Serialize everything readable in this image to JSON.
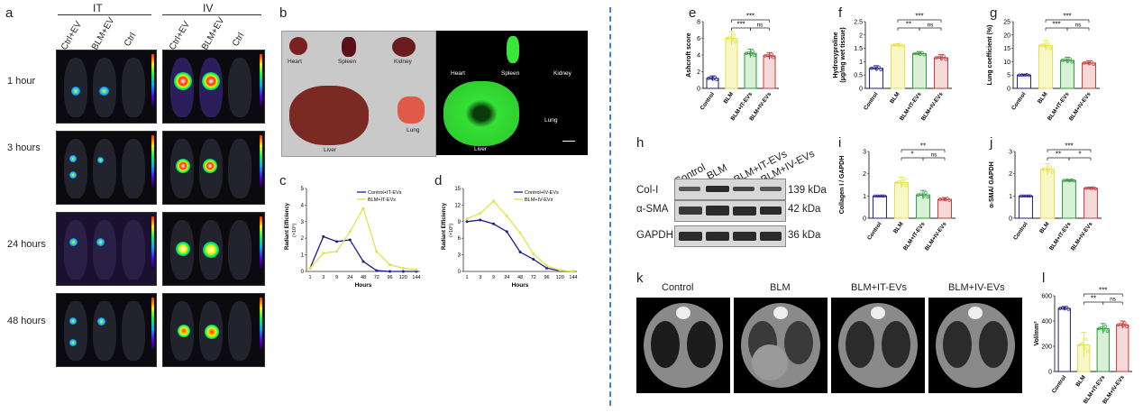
{
  "panels": {
    "a": {
      "letter": "a",
      "groups": [
        "IT",
        "IV"
      ],
      "columns": [
        "Ctrl+EV",
        "BLM+EV",
        "Ctrl",
        "Ctrl+EV",
        "BLM+EV",
        "Ctrl"
      ],
      "rows": [
        "1 hour",
        "3 hours",
        "24 hours",
        "48 hours"
      ]
    },
    "b": {
      "letter": "b",
      "organs_brightfield": [
        "Heart",
        "Spleen",
        "Kidney",
        "Liver",
        "Lung"
      ],
      "organs_fluor": [
        "Heart",
        "Spleen",
        "Kidney",
        "Liver",
        "Lung"
      ]
    },
    "c": {
      "letter": "c"
    },
    "d": {
      "letter": "d"
    },
    "e": {
      "letter": "e"
    },
    "f": {
      "letter": "f"
    },
    "g": {
      "letter": "g"
    },
    "h": {
      "letter": "h",
      "lanes": [
        "Control",
        "BLM",
        "BLM+IT-EVs",
        "BLM+IV-EVs"
      ],
      "bands": [
        {
          "name": "Col-I",
          "size": "139 kDa"
        },
        {
          "name": "α-SMA",
          "size": "42 kDa"
        },
        {
          "name": "GAPDH",
          "size": "36 kDa"
        }
      ]
    },
    "i": {
      "letter": "i"
    },
    "j": {
      "letter": "j"
    },
    "k": {
      "letter": "k",
      "titles": [
        "Control",
        "BLM",
        "BLM+IT-EVs",
        "BLM+IV-EVs"
      ]
    },
    "l": {
      "letter": "l"
    }
  },
  "colors": {
    "control": "#1d1d8f",
    "blm": "#e6e04a",
    "it": "#2f9a3a",
    "iv": "#c23b3b",
    "divider": "#4a7fc1"
  },
  "chart_data": [
    {
      "id": "c",
      "type": "line",
      "x": [
        1,
        3,
        9,
        24,
        48,
        72,
        96,
        120,
        144
      ],
      "xlabel": "Hours",
      "ylabel": "Radiant Efficiency",
      "yunit": "(×10⁸)",
      "ylim": [
        0,
        5
      ],
      "legend": "top-right",
      "series": [
        {
          "name": "Control+IT-EVs",
          "color": "#1d1d8f",
          "values": [
            0.2,
            2.1,
            1.8,
            1.9,
            0.6,
            0.05,
            0.0,
            0.0,
            0.0
          ]
        },
        {
          "name": "BLM+IT-EVs",
          "color": "#e6e04a",
          "values": [
            0.2,
            1.1,
            1.2,
            2.4,
            3.8,
            1.2,
            0.4,
            0.2,
            0.1
          ]
        }
      ]
    },
    {
      "id": "d",
      "type": "line",
      "x": [
        1,
        3,
        9,
        24,
        48,
        72,
        96,
        120,
        144
      ],
      "xlabel": "Hours",
      "ylabel": "Radiant Efficiency",
      "yunit": "(×10⁸)",
      "ylim": [
        0,
        15
      ],
      "legend": "top-right",
      "series": [
        {
          "name": "Control+IV-EVs",
          "color": "#1d1d8f",
          "values": [
            9.0,
            9.3,
            8.6,
            7.2,
            3.5,
            2.2,
            0.6,
            0.1,
            0.0
          ]
        },
        {
          "name": "BLM+IV-EVs",
          "color": "#e6e04a",
          "values": [
            9.5,
            10.5,
            12.7,
            10.0,
            7.0,
            3.2,
            1.0,
            0.2,
            0.0
          ]
        }
      ]
    },
    {
      "id": "e",
      "type": "bar",
      "ylabel": "Ashcroft score",
      "ylim": [
        0,
        8
      ],
      "yticks": [
        0,
        2,
        4,
        6,
        8
      ],
      "categories": [
        "Control",
        "BLM",
        "BLM+IT-EVs",
        "BLM+IV-EVs"
      ],
      "values": [
        1.2,
        6.0,
        4.2,
        3.9
      ],
      "errors": [
        0.3,
        0.8,
        0.5,
        0.4
      ],
      "sig": [
        {
          "from": 1,
          "to": 2,
          "label": "***"
        },
        {
          "from": 2,
          "to": 3,
          "label": "ns"
        },
        {
          "from": 1,
          "to": 3,
          "label": "***"
        }
      ]
    },
    {
      "id": "f",
      "type": "bar",
      "ylabel": "Hydroxyproline",
      "ylabel2": "(μg/mg wet tissue)",
      "ylim": [
        0,
        2.5
      ],
      "yticks": [
        0,
        0.5,
        1.0,
        1.5,
        2.0,
        2.5
      ],
      "categories": [
        "Control",
        "BLM",
        "BLM+IT-EVs",
        "BLM+IV-EVs"
      ],
      "values": [
        0.75,
        1.62,
        1.3,
        1.15
      ],
      "errors": [
        0.1,
        0.06,
        0.08,
        0.12
      ],
      "sig": [
        {
          "from": 1,
          "to": 2,
          "label": "**"
        },
        {
          "from": 2,
          "to": 3,
          "label": "ns"
        },
        {
          "from": 1,
          "to": 3,
          "label": "***"
        }
      ]
    },
    {
      "id": "g",
      "type": "bar",
      "ylabel": "Lung coefficient (%)",
      "ylim": [
        0,
        25
      ],
      "yticks": [
        0,
        5,
        10,
        15,
        20,
        25
      ],
      "categories": [
        "Control",
        "BLM",
        "BLM+IT-EVs",
        "BLM+IV-EVs"
      ],
      "values": [
        5.0,
        16.0,
        10.5,
        9.5
      ],
      "errors": [
        0.3,
        2.0,
        1.2,
        0.9
      ],
      "sig": [
        {
          "from": 1,
          "to": 2,
          "label": "***"
        },
        {
          "from": 2,
          "to": 3,
          "label": "ns"
        },
        {
          "from": 1,
          "to": 3,
          "label": "***"
        }
      ]
    },
    {
      "id": "i",
      "type": "bar",
      "ylabel": "Collagen I / GAPDH",
      "ylim": [
        0,
        3
      ],
      "yticks": [
        0,
        1,
        2,
        3
      ],
      "categories": [
        "Control",
        "BLM",
        "BLM+IT-EVs",
        "BLM+IV-EVs"
      ],
      "values": [
        1.0,
        1.6,
        1.05,
        0.85
      ],
      "errors": [
        0.0,
        0.25,
        0.2,
        0.08
      ],
      "sig": [
        {
          "from": 1,
          "to": 2,
          "label": "*"
        },
        {
          "from": 2,
          "to": 3,
          "label": "ns"
        },
        {
          "from": 1,
          "to": 3,
          "label": "**"
        }
      ]
    },
    {
      "id": "j",
      "type": "bar",
      "ylabel": "α-SMA/ GAPDH",
      "ylim": [
        0,
        3
      ],
      "yticks": [
        0,
        1,
        2,
        3
      ],
      "categories": [
        "Control",
        "BLM",
        "BLM+IT-EVs",
        "BLM+IV-EVs"
      ],
      "values": [
        1.0,
        2.2,
        1.7,
        1.35
      ],
      "errors": [
        0.0,
        0.25,
        0.04,
        0.04
      ],
      "sig": [
        {
          "from": 1,
          "to": 2,
          "label": "**"
        },
        {
          "from": 2,
          "to": 3,
          "label": "*"
        },
        {
          "from": 1,
          "to": 3,
          "label": "***"
        }
      ]
    },
    {
      "id": "l",
      "type": "bar",
      "ylabel": "Vol/mm³",
      "ylim": [
        0,
        600
      ],
      "yticks": [
        0,
        200,
        400,
        600
      ],
      "categories": [
        "Control",
        "BLM",
        "BLM+IT-EVs",
        "BLM+IV-EVs"
      ],
      "values": [
        500,
        210,
        340,
        370
      ],
      "errors": [
        15,
        100,
        40,
        30
      ],
      "sig": [
        {
          "from": 1,
          "to": 2,
          "label": "**"
        },
        {
          "from": 2,
          "to": 3,
          "label": "ns"
        },
        {
          "from": 1,
          "to": 3,
          "label": "***"
        }
      ]
    }
  ]
}
